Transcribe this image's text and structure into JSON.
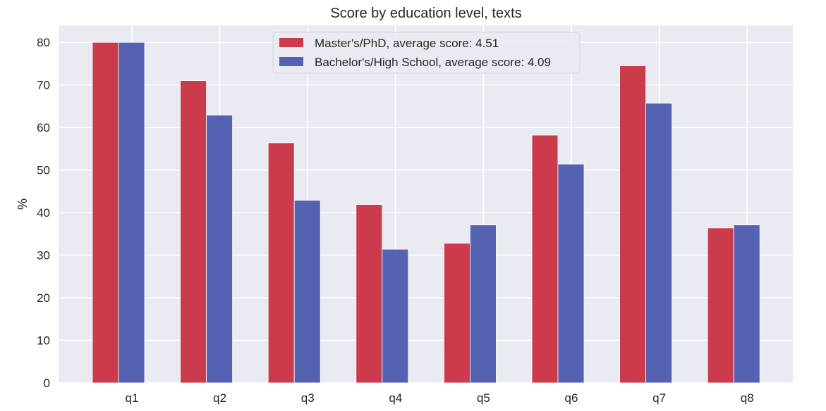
{
  "chart_data": {
    "type": "bar",
    "title": "Score by education level, texts",
    "xlabel": "",
    "ylabel": "%",
    "categories": [
      "q1",
      "q2",
      "q3",
      "q4",
      "q5",
      "q6",
      "q7",
      "q8"
    ],
    "series": [
      {
        "name": "Master's/PhD, average score: 4.51",
        "color": "#cc3b4c",
        "values": [
          80.0,
          71.0,
          56.4,
          41.9,
          32.8,
          58.2,
          74.5,
          36.4
        ]
      },
      {
        "name": "Bachelor's/High School, average score: 4.09",
        "color": "#5562b2",
        "values": [
          80.0,
          62.9,
          42.9,
          31.4,
          37.1,
          51.4,
          65.7,
          37.1
        ]
      }
    ],
    "ylim": [
      0,
      84
    ],
    "yticks": [
      0,
      10,
      20,
      30,
      40,
      50,
      60,
      70,
      80
    ],
    "grid": true,
    "legend_position": "top-center",
    "plot_background": "#eaeaf2",
    "grid_color": "#ffffff"
  }
}
